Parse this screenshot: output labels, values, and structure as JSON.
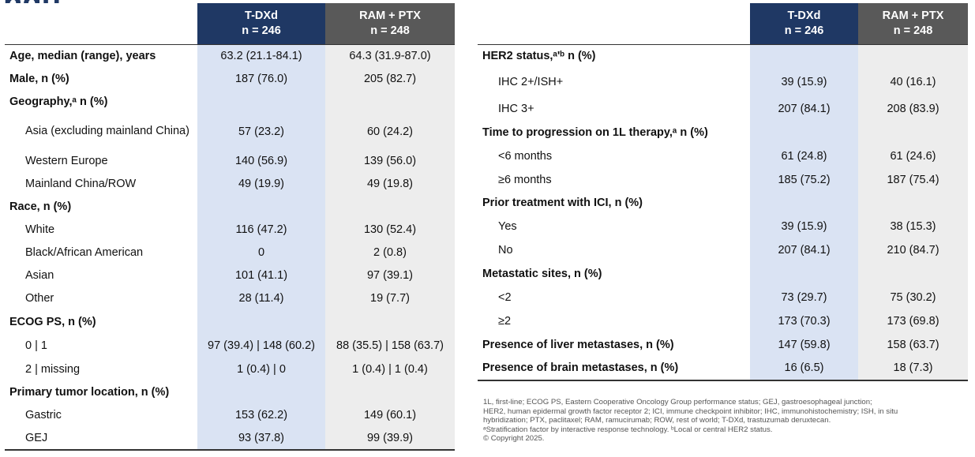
{
  "title_fragment": "ngu",
  "columns": {
    "blank": "",
    "t_dxd": {
      "name": "T-DXd",
      "n": "n = 246"
    },
    "ram_ptx": {
      "name": "RAM + PTX",
      "n": "n = 248"
    }
  },
  "left_rows": [
    {
      "label": "Age, median (range), years",
      "style": "sec",
      "a": "63.2 (21.1-84.1)",
      "b": "64.3 (31.9-87.0)"
    },
    {
      "label": "Male, n (%)",
      "style": "sec",
      "a": "187 (76.0)",
      "b": "205 (82.7)"
    },
    {
      "label": "Geography,ᵃ n (%)",
      "style": "sec",
      "a": "",
      "b": ""
    },
    {
      "label": "Asia (excluding mainland China)",
      "style": "sub wrap",
      "a": "57 (23.2)",
      "b": "60 (24.2)"
    },
    {
      "label": "Western Europe",
      "style": "sub",
      "a": "140 (56.9)",
      "b": "139 (56.0)"
    },
    {
      "label": "Mainland China/ROW",
      "style": "sub",
      "a": "49 (19.9)",
      "b": "49 (19.8)"
    },
    {
      "label": "Race, n (%)",
      "style": "sec",
      "a": "",
      "b": ""
    },
    {
      "label": "White",
      "style": "sub",
      "a": "116 (47.2)",
      "b": "130 (52.4)"
    },
    {
      "label": "Black/African American",
      "style": "sub",
      "a": "0",
      "b": "2 (0.8)"
    },
    {
      "label": "Asian",
      "style": "sub",
      "a": "101 (41.1)",
      "b": "97 (39.1)"
    },
    {
      "label": "Other",
      "style": "sub",
      "a": "28 (11.4)",
      "b": "19 (7.7)"
    },
    {
      "label": "ECOG PS, n (%)",
      "style": "sec",
      "a": "",
      "b": ""
    },
    {
      "label": "0 | 1",
      "style": "sub",
      "a": "97 (39.4) | 148 (60.2)",
      "b": "88 (35.5) | 158 (63.7)"
    },
    {
      "label": "2 | missing",
      "style": "sub",
      "a": "1 (0.4) | 0",
      "b": "1 (0.4) | 1 (0.4)"
    },
    {
      "label": "Primary tumor location, n (%)",
      "style": "sec",
      "a": "",
      "b": ""
    },
    {
      "label": "Gastric",
      "style": "sub",
      "a": "153 (62.2)",
      "b": "149 (60.1)"
    },
    {
      "label": "GEJ",
      "style": "sub",
      "a": "93 (37.8)",
      "b": "99 (39.9)"
    }
  ],
  "right_rows": [
    {
      "label": "HER2 status,ᵃ'ᵇ n (%)",
      "style": "sec",
      "a": "",
      "b": ""
    },
    {
      "label": "IHC 2+/ISH+",
      "style": "sub",
      "a": "39 (15.9)",
      "b": "40 (16.1)"
    },
    {
      "label": "IHC 3+",
      "style": "sub",
      "a": "207 (84.1)",
      "b": "208 (83.9)"
    },
    {
      "label": "Time to progression on 1L therapy,ᵃ n (%)",
      "style": "sec",
      "a": "",
      "b": ""
    },
    {
      "label": "<6 months",
      "style": "sub",
      "a": "61 (24.8)",
      "b": "61 (24.6)"
    },
    {
      "label": "≥6 months",
      "style": "sub",
      "a": "185 (75.2)",
      "b": "187 (75.4)"
    },
    {
      "label": "Prior treatment with ICI, n (%)",
      "style": "sec",
      "a": "",
      "b": ""
    },
    {
      "label": "Yes",
      "style": "sub",
      "a": "39 (15.9)",
      "b": "38 (15.3)"
    },
    {
      "label": "No",
      "style": "sub",
      "a": "207 (84.1)",
      "b": "210 (84.7)"
    },
    {
      "label": "Metastatic sites, n (%)",
      "style": "sec",
      "a": "",
      "b": ""
    },
    {
      "label": "<2",
      "style": "sub",
      "a": "73 (29.7)",
      "b": "75 (30.2)"
    },
    {
      "label": "≥2",
      "style": "sub",
      "a": "173 (70.3)",
      "b": "173 (69.8)"
    },
    {
      "label": "Presence of liver metastases, n (%)",
      "style": "sec",
      "a": "147 (59.8)",
      "b": "158 (63.7)"
    },
    {
      "label": "Presence of brain metastases, n (%)",
      "style": "sec",
      "a": "16 (6.5)",
      "b": "18 (7.3)"
    }
  ],
  "footnote_lines": [
    "1L, first-line; ECOG PS, Eastern Cooperative Oncology Group performance status; GEJ, gastroesophageal junction;",
    "HER2, human epidermal growth factor receptor 2; ICI, immune checkpoint inhibitor; IHC, immunohistochemistry; ISH, in situ",
    "hybridization; PTX, paclitaxel; RAM, ramucirumab; ROW, rest of world; T-DXd, trastuzumab deruxtecan.",
    "ᵃStratification factor by interactive response technology. ᵇLocal or central HER2 status.",
    "© Copyright 2025."
  ],
  "colors": {
    "t_dxd_header": "#1f3864",
    "ram_ptx_header": "#595959",
    "t_dxd_fill": "#dae3f3",
    "ram_ptx_fill": "#ededed"
  }
}
